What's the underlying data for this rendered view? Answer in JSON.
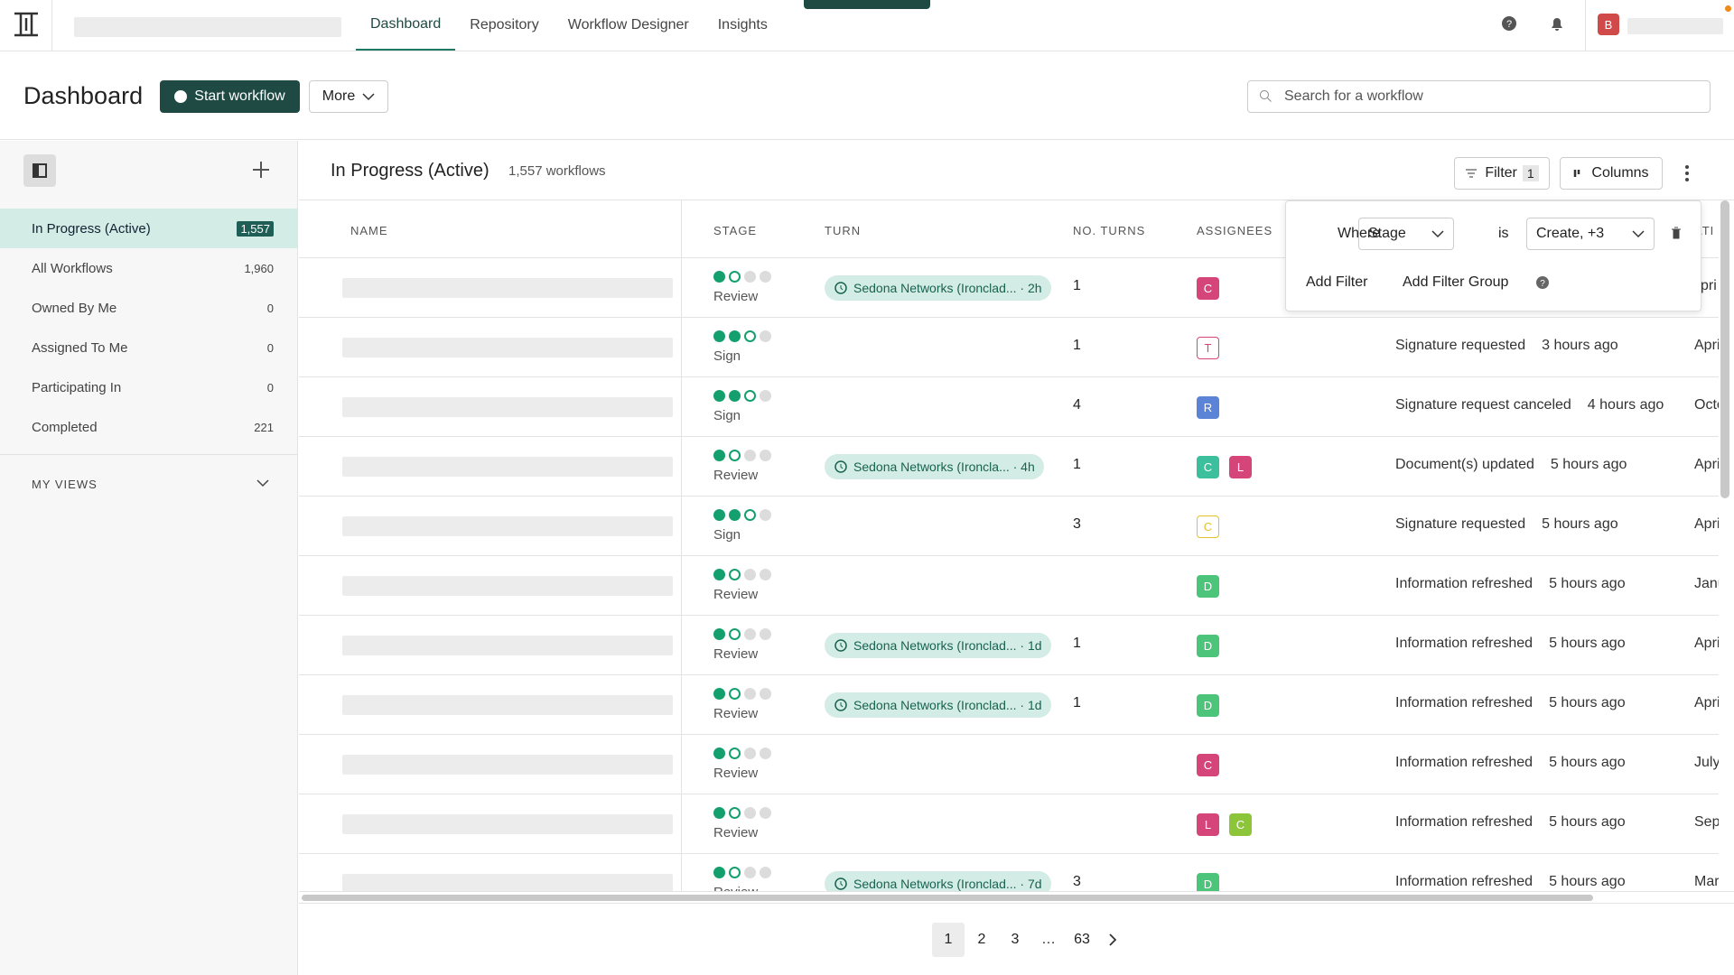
{
  "nav": {
    "tabs": [
      "Dashboard",
      "Repository",
      "Workflow Designer",
      "Insights"
    ],
    "avatar": "B"
  },
  "header": {
    "title": "Dashboard",
    "start_button": "Start workflow",
    "more_button": "More",
    "search_placeholder": "Search for a workflow"
  },
  "sidebar": {
    "items": [
      {
        "label": "In Progress (Active)",
        "count": "1,557"
      },
      {
        "label": "All Workflows",
        "count": "1,960"
      },
      {
        "label": "Owned By Me",
        "count": "0"
      },
      {
        "label": "Assigned To Me",
        "count": "0"
      },
      {
        "label": "Participating In",
        "count": "0"
      },
      {
        "label": "Completed",
        "count": "221"
      }
    ],
    "views_label": "MY VIEWS"
  },
  "main": {
    "title": "In Progress (Active)",
    "count_text": "1,557 workflows",
    "filter_button": "Filter",
    "filter_count": "1",
    "columns_button": "Columns"
  },
  "table": {
    "columns": [
      "NAME",
      "STAGE",
      "TURN",
      "NO. TURNS",
      "ASSIGNEES",
      "ATI"
    ],
    "rows": [
      {
        "stage": "Review",
        "step": 2,
        "turn": "Sedona Networks (Ironclad... · 2h",
        "turns": "1",
        "assignees": [
          {
            "letter": "C",
            "color": "#d6457a"
          }
        ],
        "date": "pri"
      },
      {
        "stage": "Sign",
        "step": 3,
        "turns": "1",
        "assignees": [
          {
            "letter": "T",
            "color": "#d6457a",
            "outline": true
          }
        ],
        "activity": "Signature requested",
        "time": "3 hours ago",
        "date": "Apri"
      },
      {
        "stage": "Sign",
        "step": 3,
        "turns": "4",
        "assignees": [
          {
            "letter": "R",
            "color": "#5b84d6"
          }
        ],
        "activity": "Signature request canceled",
        "time": "4 hours ago",
        "date": "Octo"
      },
      {
        "stage": "Review",
        "step": 2,
        "turn": "Sedona Networks (Ironcla... · 4h",
        "turns": "1",
        "assignees": [
          {
            "letter": "C",
            "color": "#3bbf9c"
          },
          {
            "letter": "L",
            "color": "#d6457a"
          }
        ],
        "activity": "Document(s) updated",
        "time": "5 hours ago",
        "date": "Apri"
      },
      {
        "stage": "Sign",
        "step": 3,
        "turns": "3",
        "assignees": [
          {
            "letter": "C",
            "color": "#e3c02a",
            "outline": true
          }
        ],
        "activity": "Signature requested",
        "time": "5 hours ago",
        "date": "Apri"
      },
      {
        "stage": "Review",
        "step": 2,
        "assignees": [
          {
            "letter": "D",
            "color": "#4cc47a"
          }
        ],
        "activity": "Information refreshed",
        "time": "5 hours ago",
        "date": "Janu"
      },
      {
        "stage": "Review",
        "step": 2,
        "turn": "Sedona Networks (Ironclad... · 1d",
        "turns": "1",
        "assignees": [
          {
            "letter": "D",
            "color": "#4cc47a"
          }
        ],
        "activity": "Information refreshed",
        "time": "5 hours ago",
        "date": "Apri"
      },
      {
        "stage": "Review",
        "step": 2,
        "turn": "Sedona Networks (Ironclad... · 1d",
        "turns": "1",
        "assignees": [
          {
            "letter": "D",
            "color": "#4cc47a"
          }
        ],
        "activity": "Information refreshed",
        "time": "5 hours ago",
        "date": "Apri"
      },
      {
        "stage": "Review",
        "step": 2,
        "assignees": [
          {
            "letter": "C",
            "color": "#d6457a"
          }
        ],
        "activity": "Information refreshed",
        "time": "5 hours ago",
        "date": "July"
      },
      {
        "stage": "Review",
        "step": 2,
        "assignees": [
          {
            "letter": "L",
            "color": "#d6457a"
          },
          {
            "letter": "C",
            "color": "#8cc43a"
          }
        ],
        "activity": "Information refreshed",
        "time": "5 hours ago",
        "date": "Sept"
      },
      {
        "stage": "Review",
        "step": 2,
        "turn": "Sedona Networks (Ironclad... · 7d",
        "turns": "3",
        "assignees": [
          {
            "letter": "D",
            "color": "#4cc47a"
          }
        ],
        "activity": "Information refreshed",
        "time": "5 hours ago",
        "date": "Mar"
      }
    ]
  },
  "filter_popover": {
    "where": "Where",
    "field": "Stage",
    "operator": "is",
    "value": "Create, +3",
    "add_filter": "Add Filter",
    "add_group": "Add Filter Group"
  },
  "pagination": {
    "pages": [
      "1",
      "2",
      "3",
      "…",
      "63"
    ]
  }
}
